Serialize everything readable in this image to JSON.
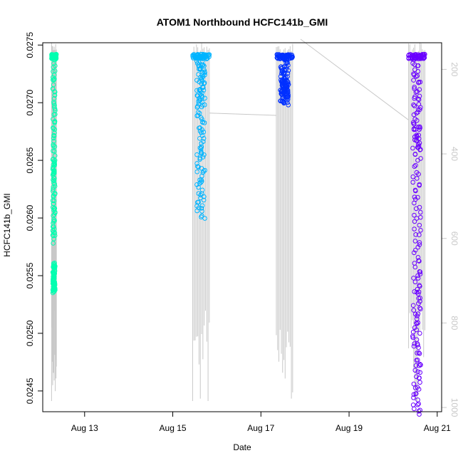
{
  "chart_data": {
    "type": "scatter",
    "title": "ATOM1 Northbound HCFC141b_GMI",
    "xlabel": "Date",
    "ylabel": "HCFC141b_GMI",
    "x_tick_labels": [
      "Aug 13",
      "Aug 15",
      "Aug 17",
      "Aug 19",
      "Aug 21"
    ],
    "x_ticks_days": [
      13,
      15,
      17,
      19,
      21
    ],
    "xlim_days": [
      12.05,
      21.1
    ],
    "ylim": [
      0.02432,
      0.02752
    ],
    "y_ticks": [
      0.0245,
      0.025,
      0.0255,
      0.026,
      0.0265,
      0.027,
      0.0275
    ],
    "y_tick_labels": [
      "0.0245",
      "0.0250",
      "0.0255",
      "0.0260",
      "0.0265",
      "0.0270",
      "0.0275"
    ],
    "secondary_axis": {
      "description": "right axis (altitude / pressure), light grey",
      "ylim": [
        1010,
        137
      ],
      "ticks": [
        200,
        400,
        600,
        800,
        1000
      ],
      "color": "#c8c8c8"
    },
    "profile_color": "#c8c8c8",
    "series": [
      {
        "color": "#00ffb0",
        "x_range_days": [
          12.25,
          12.36
        ],
        "segments": [
          {
            "y_from": 0.0274,
            "y_to": 0.0274
          },
          {
            "y_from": 0.0274,
            "y_to": 0.0264
          },
          {
            "y_from": 0.0265,
            "y_to": 0.0258
          },
          {
            "y_from": 0.0256,
            "y_to": 0.02535
          }
        ]
      },
      {
        "color": "#00b4ff",
        "x_range_days": [
          15.45,
          15.83
        ],
        "segments": [
          {
            "y_from": 0.0274,
            "y_to": 0.0274
          },
          {
            "y_from": 0.0274,
            "y_to": 0.027
          },
          {
            "y_from": 0.027,
            "y_to": 0.026
          }
        ]
      },
      {
        "color": "#0030ff",
        "x_range_days": [
          17.35,
          17.72
        ],
        "segments": [
          {
            "y_from": 0.0274,
            "y_to": 0.0274
          },
          {
            "y_from": 0.0274,
            "y_to": 0.0271
          },
          {
            "y_from": 0.0272,
            "y_to": 0.027
          }
        ]
      },
      {
        "color": "#6a00ff",
        "x_range_days": [
          20.35,
          20.72
        ],
        "segments": [
          {
            "y_from": 0.0274,
            "y_to": 0.0274
          },
          {
            "y_from": 0.0274,
            "y_to": 0.0266
          },
          {
            "y_from": 0.0268,
            "y_to": 0.0255
          },
          {
            "y_from": 0.0255,
            "y_to": 0.0243
          }
        ]
      }
    ]
  }
}
